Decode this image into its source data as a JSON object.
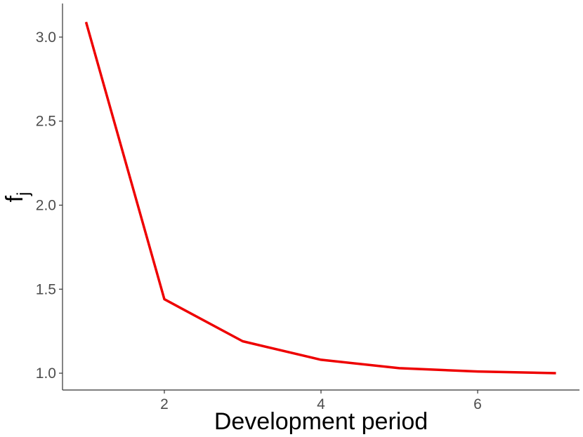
{
  "chart_data": {
    "type": "line",
    "title": "",
    "xlabel": "Development period",
    "ylabel": {
      "main": "f",
      "subscript": "j"
    },
    "xlim": [
      0.7,
      7.3
    ],
    "ylim": [
      0.9,
      3.2
    ],
    "xticks": [
      2,
      4,
      6
    ],
    "yticks": [
      1.0,
      1.5,
      2.0,
      2.5,
      3.0
    ],
    "xtick_labels": [
      "2",
      "4",
      "6"
    ],
    "ytick_labels": [
      "1.0",
      "1.5",
      "2.0",
      "2.5",
      "3.0"
    ],
    "grid": false,
    "series": [
      {
        "color": "#ee0000",
        "x": [
          1,
          2,
          3,
          4,
          5,
          6,
          7
        ],
        "y": [
          3.09,
          1.44,
          1.19,
          1.08,
          1.03,
          1.01,
          1.0
        ]
      }
    ]
  }
}
